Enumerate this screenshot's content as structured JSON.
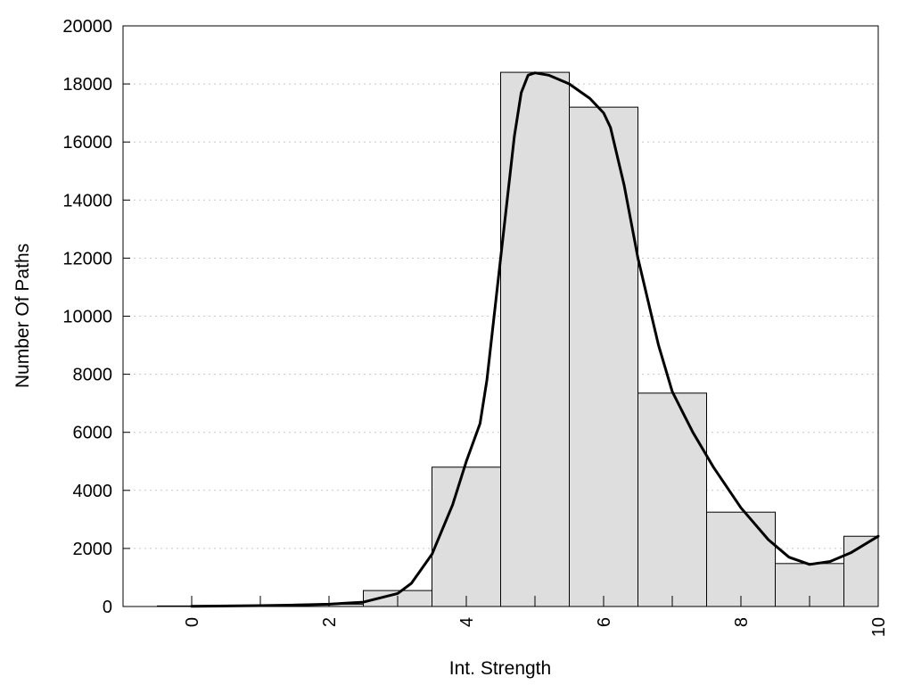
{
  "chart_data": {
    "type": "bar",
    "xlabel": "Int. Strength",
    "ylabel": "Number Of Paths",
    "xlim": [
      -1,
      10
    ],
    "ylim": [
      0,
      20000
    ],
    "x_ticks": [
      0,
      2,
      4,
      6,
      8,
      10
    ],
    "y_ticks": [
      0,
      2000,
      4000,
      6000,
      8000,
      10000,
      12000,
      14000,
      16000,
      18000,
      20000
    ],
    "grid": "horizontal dotted",
    "bar_width": 1,
    "x": [
      0,
      1,
      2,
      3,
      4,
      5,
      6,
      7,
      8,
      9,
      10
    ],
    "values": [
      20,
      30,
      80,
      550,
      4800,
      18400,
      17200,
      7350,
      3250,
      1480,
      2420
    ],
    "fit_curve": {
      "x": [
        0,
        1,
        1.5,
        2,
        2.5,
        3,
        3.2,
        3.5,
        3.8,
        4.0,
        4.2,
        4.3,
        4.5,
        4.7,
        4.8,
        4.9,
        5.0,
        5.2,
        5.5,
        5.8,
        6.0,
        6.1,
        6.3,
        6.5,
        6.8,
        7.0,
        7.3,
        7.6,
        8.0,
        8.4,
        8.7,
        9.0,
        9.3,
        9.6,
        10.0
      ],
      "y": [
        10,
        30,
        50,
        80,
        150,
        450,
        800,
        1800,
        3500,
        5000,
        6300,
        7800,
        12000,
        16200,
        17700,
        18300,
        18380,
        18300,
        18000,
        17500,
        17000,
        16500,
        14500,
        12000,
        9000,
        7400,
        6000,
        4800,
        3400,
        2300,
        1700,
        1450,
        1550,
        1850,
        2420
      ]
    }
  }
}
